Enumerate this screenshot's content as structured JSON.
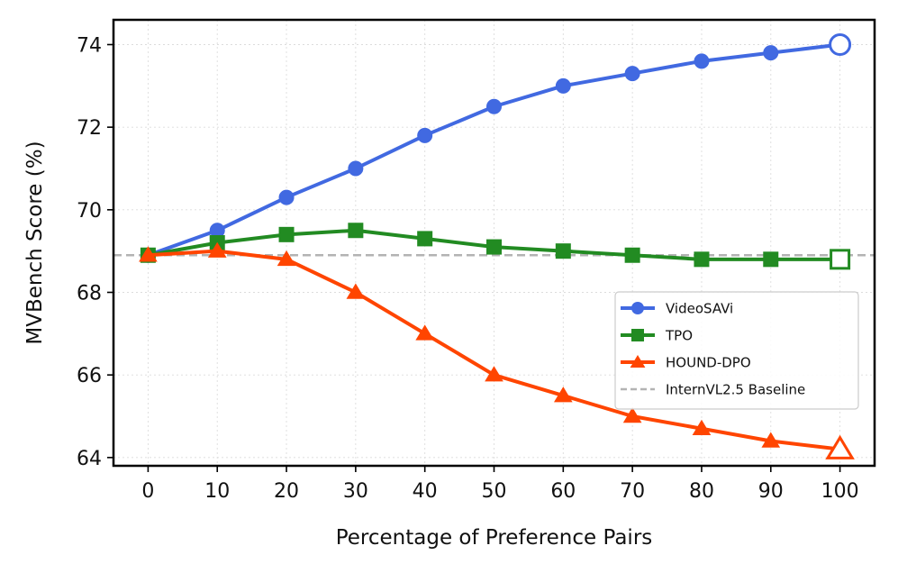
{
  "chart_data": {
    "type": "line",
    "title": "",
    "xlabel": "Percentage of Preference Pairs",
    "ylabel": "MVBench Score (%)",
    "x": [
      0,
      10,
      20,
      30,
      40,
      50,
      60,
      70,
      80,
      90,
      100
    ],
    "xticks": [
      "0",
      "10",
      "20",
      "30",
      "40",
      "50",
      "60",
      "70",
      "80",
      "90",
      "100"
    ],
    "yticks": [
      "64",
      "66",
      "68",
      "70",
      "72",
      "74"
    ],
    "xlim": [
      -5,
      105
    ],
    "ylim": [
      63.8,
      74.6
    ],
    "grid": true,
    "legend_position": "center-right",
    "series": [
      {
        "name": "VideoSAVi",
        "color": "#4169E1",
        "marker": "circle",
        "values": [
          68.9,
          69.5,
          70.3,
          71.0,
          71.8,
          72.5,
          73.0,
          73.3,
          73.6,
          73.8,
          74.0
        ]
      },
      {
        "name": "TPO",
        "color": "#228B22",
        "marker": "square",
        "values": [
          68.9,
          69.2,
          69.4,
          69.5,
          69.3,
          69.1,
          69.0,
          68.9,
          68.8,
          68.8,
          68.8
        ]
      },
      {
        "name": "HOUND-DPO",
        "color": "#FF4500",
        "marker": "triangle",
        "values": [
          68.9,
          69.0,
          68.8,
          68.0,
          67.0,
          66.0,
          65.5,
          65.0,
          64.7,
          64.4,
          64.2
        ]
      }
    ],
    "baseline": {
      "name": "InternVL2.5 Baseline",
      "value": 68.9,
      "color": "#b3b3b3",
      "style": "dashed"
    }
  }
}
